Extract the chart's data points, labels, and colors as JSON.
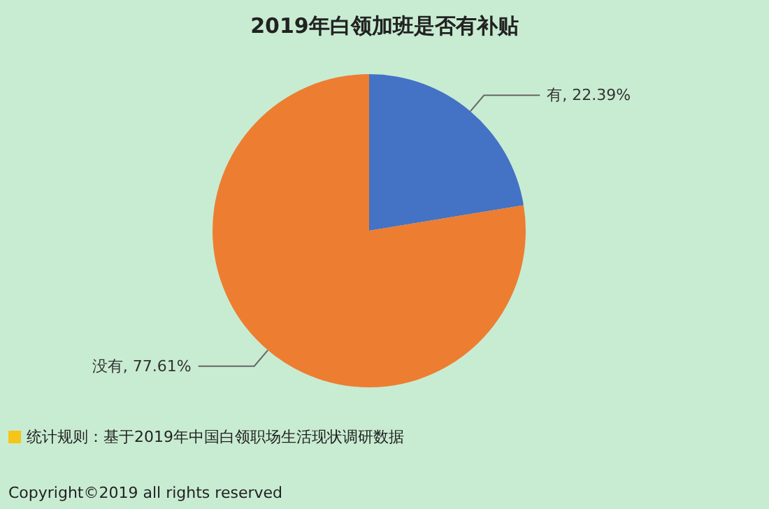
{
  "chart_data": {
    "type": "pie",
    "title": "2019年白领加班是否有补贴",
    "categories": [
      "有",
      "没有"
    ],
    "values": [
      22.39,
      77.61
    ],
    "colors": [
      "#4472c4",
      "#ed7d31"
    ],
    "value_labels": [
      ", 22.39%",
      ", 77.61%"
    ],
    "legend": false,
    "annotations": [
      "统计规则：基于2019年中国白领职场生活现状调研数据",
      "Copyright©2019 all rights reserved"
    ]
  }
}
